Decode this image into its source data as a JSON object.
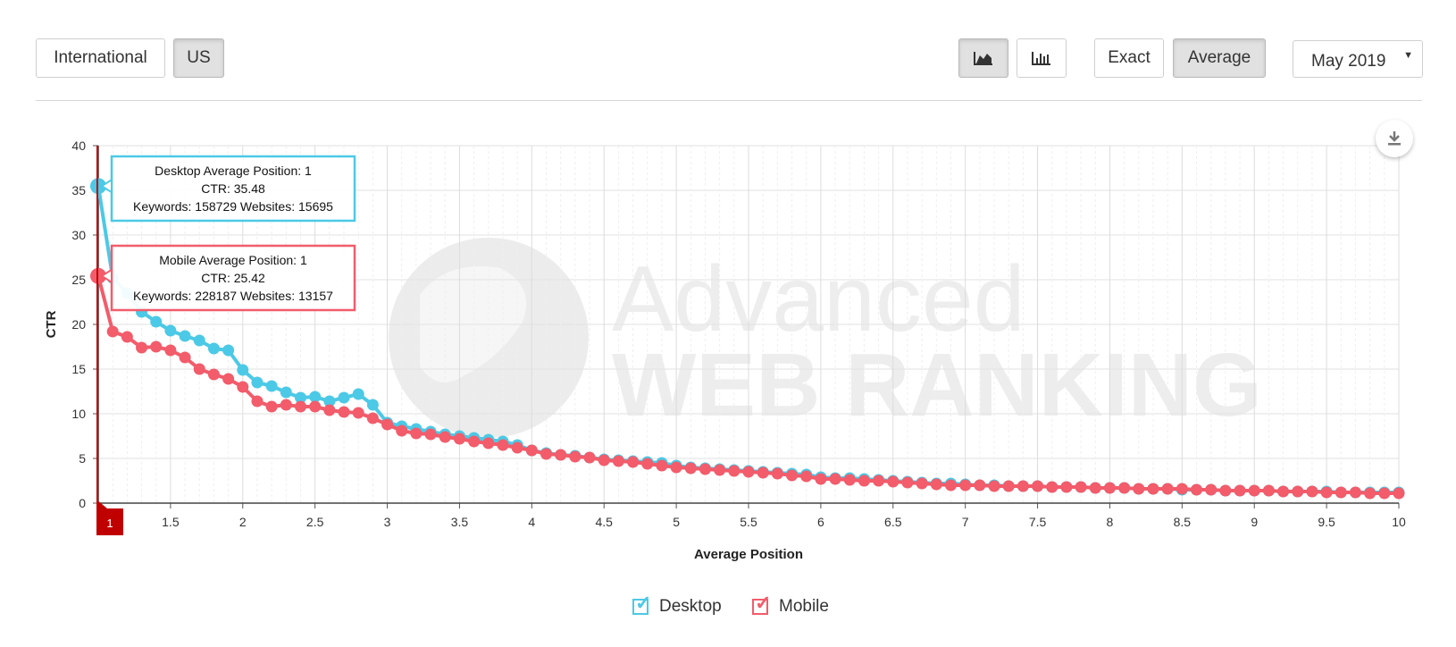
{
  "toolbar": {
    "region_tabs": [
      {
        "label": "International",
        "active": false
      },
      {
        "label": "US",
        "active": true
      }
    ],
    "view_buttons": [
      {
        "icon": "area-chart-icon",
        "active": true
      },
      {
        "icon": "bar-chart-icon",
        "active": false
      }
    ],
    "mode_tabs": [
      {
        "label": "Exact",
        "active": false
      },
      {
        "label": "Average",
        "active": true
      }
    ],
    "date_select": {
      "value": "May 2019"
    }
  },
  "download_icon": "download-icon",
  "watermark": {
    "line1": "Advanced",
    "line2": "WEB RANKING"
  },
  "legend": {
    "desktop": {
      "label": "Desktop",
      "color": "#4cc9e6"
    },
    "mobile": {
      "label": "Mobile",
      "color": "#f25c6b"
    }
  },
  "tooltips": {
    "desktop": {
      "line1": "Desktop Average Position: 1",
      "line2": "CTR: 35.48",
      "line3": "Keywords: 158729 Websites: 15695"
    },
    "mobile": {
      "line1": "Mobile Average Position: 1",
      "line2": "CTR: 25.42",
      "line3": "Keywords: 228187 Websites: 13157"
    }
  },
  "marker": {
    "label": "1",
    "x": 1
  },
  "chart_data": {
    "type": "line",
    "xlabel": "Average Position",
    "ylabel": "CTR",
    "xlim": [
      1,
      10
    ],
    "ylim": [
      0,
      40
    ],
    "xticks": [
      "1.5",
      "2",
      "2.5",
      "3",
      "3.5",
      "4",
      "4.5",
      "5",
      "5.5",
      "6",
      "6.5",
      "7",
      "7.5",
      "8",
      "8.5",
      "9",
      "9.5",
      "10"
    ],
    "yticks": [
      "0",
      "5",
      "10",
      "15",
      "20",
      "25",
      "30",
      "35",
      "40"
    ],
    "grid": true,
    "legend": "bottom-center",
    "x": [
      1,
      1.1,
      1.2,
      1.3,
      1.4,
      1.5,
      1.6,
      1.7,
      1.8,
      1.9,
      2,
      2.1,
      2.2,
      2.3,
      2.4,
      2.5,
      2.6,
      2.7,
      2.8,
      2.9,
      3,
      3.1,
      3.2,
      3.3,
      3.4,
      3.5,
      3.6,
      3.7,
      3.8,
      3.9,
      4,
      4.1,
      4.2,
      4.3,
      4.4,
      4.5,
      4.6,
      4.7,
      4.8,
      4.9,
      5,
      5.1,
      5.2,
      5.3,
      5.4,
      5.5,
      5.6,
      5.7,
      5.8,
      5.9,
      6,
      6.1,
      6.2,
      6.3,
      6.4,
      6.5,
      6.6,
      6.7,
      6.8,
      6.9,
      7,
      7.1,
      7.2,
      7.3,
      7.4,
      7.5,
      7.6,
      7.7,
      7.8,
      7.9,
      8,
      8.1,
      8.2,
      8.3,
      8.4,
      8.5,
      8.6,
      8.7,
      8.8,
      8.9,
      9,
      9.1,
      9.2,
      9.3,
      9.4,
      9.5,
      9.6,
      9.7,
      9.8,
      9.9,
      10
    ],
    "series": [
      {
        "name": "Desktop",
        "color": "#4cc9e6",
        "values": [
          35.48,
          25.2,
          23.5,
          21.4,
          20.3,
          19.3,
          18.7,
          18.2,
          17.3,
          17.1,
          14.9,
          13.5,
          13.1,
          12.4,
          11.8,
          11.9,
          11.4,
          11.8,
          12.2,
          11.0,
          9.0,
          8.6,
          8.3,
          8.0,
          7.7,
          7.5,
          7.3,
          7.1,
          6.9,
          6.5,
          5.9,
          5.6,
          5.4,
          5.3,
          5.1,
          4.9,
          4.8,
          4.7,
          4.6,
          4.5,
          4.2,
          4.0,
          3.9,
          3.8,
          3.7,
          3.6,
          3.5,
          3.4,
          3.3,
          3.2,
          2.9,
          2.8,
          2.8,
          2.7,
          2.6,
          2.5,
          2.4,
          2.3,
          2.2,
          2.2,
          2.1,
          2.0,
          2.0,
          1.9,
          1.9,
          1.9,
          1.8,
          1.8,
          1.8,
          1.7,
          1.7,
          1.7,
          1.6,
          1.6,
          1.6,
          1.5,
          1.5,
          1.5,
          1.4,
          1.4,
          1.4,
          1.4,
          1.3,
          1.3,
          1.3,
          1.3,
          1.2,
          1.2,
          1.2,
          1.2,
          1.2
        ]
      },
      {
        "name": "Mobile",
        "color": "#f25c6b",
        "values": [
          25.42,
          19.2,
          18.6,
          17.4,
          17.5,
          17.1,
          16.3,
          15.0,
          14.4,
          13.9,
          13.0,
          11.4,
          10.8,
          11.0,
          10.8,
          10.8,
          10.4,
          10.2,
          10.1,
          9.5,
          8.8,
          8.1,
          7.8,
          7.7,
          7.4,
          7.2,
          6.9,
          6.7,
          6.5,
          6.2,
          5.9,
          5.5,
          5.4,
          5.2,
          5.1,
          4.8,
          4.7,
          4.6,
          4.4,
          4.2,
          4.0,
          3.9,
          3.8,
          3.7,
          3.6,
          3.5,
          3.4,
          3.3,
          3.1,
          3.0,
          2.7,
          2.7,
          2.6,
          2.5,
          2.5,
          2.4,
          2.3,
          2.2,
          2.1,
          2.0,
          2.0,
          2.0,
          1.9,
          1.9,
          1.9,
          1.9,
          1.8,
          1.8,
          1.8,
          1.7,
          1.7,
          1.7,
          1.6,
          1.6,
          1.6,
          1.6,
          1.5,
          1.5,
          1.4,
          1.4,
          1.4,
          1.4,
          1.3,
          1.3,
          1.3,
          1.2,
          1.2,
          1.2,
          1.1,
          1.1,
          1.1
        ]
      }
    ]
  }
}
